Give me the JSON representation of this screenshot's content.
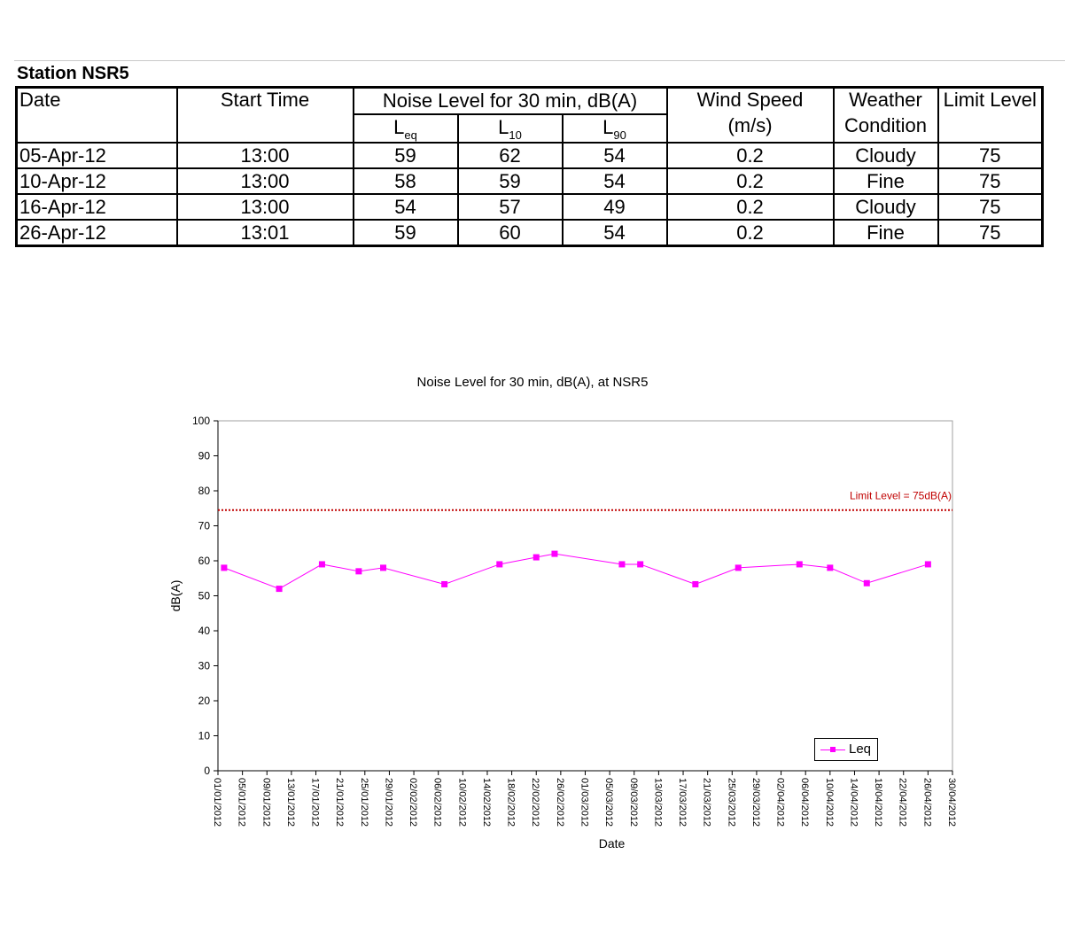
{
  "table": {
    "title": "Station NSR5",
    "headers": {
      "date": "Date",
      "start_time": "Start Time",
      "noise_group": "Noise Level for 30 min, dB(A)",
      "leq": "L",
      "leq_sub": "eq",
      "l10": "L",
      "l10_sub": "10",
      "l90": "L",
      "l90_sub": "90",
      "wind_speed": "Wind Speed",
      "wind_unit": "(m/s)",
      "weather": "Weather",
      "weather2": "Condition",
      "limit": "Limit Level"
    },
    "rows": [
      {
        "date": "05-Apr-12",
        "time": "13:00",
        "leq": "59",
        "l10": "62",
        "l90": "54",
        "wind": "0.2",
        "weather": "Cloudy",
        "limit": "75"
      },
      {
        "date": "10-Apr-12",
        "time": "13:00",
        "leq": "58",
        "l10": "59",
        "l90": "54",
        "wind": "0.2",
        "weather": "Fine",
        "limit": "75"
      },
      {
        "date": "16-Apr-12",
        "time": "13:00",
        "leq": "54",
        "l10": "57",
        "l90": "49",
        "wind": "0.2",
        "weather": "Cloudy",
        "limit": "75"
      },
      {
        "date": "26-Apr-12",
        "time": "13:01",
        "leq": "59",
        "l10": "60",
        "l90": "54",
        "wind": "0.2",
        "weather": "Fine",
        "limit": "75"
      }
    ]
  },
  "colors": {
    "series": "#ff00ff",
    "limit": "#c00000",
    "axis": "#000000",
    "plot_border": "#a0a0a0"
  },
  "chart_data": {
    "type": "line",
    "title": "Noise Level for 30 min, dB(A), at NSR5",
    "xlabel": "Date",
    "ylabel": "dB(A)",
    "ylim": [
      0,
      100
    ],
    "yticks": [
      0,
      10,
      20,
      30,
      40,
      50,
      60,
      70,
      80,
      90,
      100
    ],
    "xlim": [
      "01/01/2012",
      "30/04/2012"
    ],
    "xticks": [
      "01/01/2012",
      "05/01/2012",
      "09/01/2012",
      "13/01/2012",
      "17/01/2012",
      "21/01/2012",
      "25/01/2012",
      "29/01/2012",
      "02/02/2012",
      "06/02/2012",
      "10/02/2012",
      "14/02/2012",
      "18/02/2012",
      "22/02/2012",
      "26/02/2012",
      "01/03/2012",
      "05/03/2012",
      "09/03/2012",
      "13/03/2012",
      "17/03/2012",
      "21/03/2012",
      "25/03/2012",
      "29/03/2012",
      "02/04/2012",
      "06/04/2012",
      "10/04/2012",
      "14/04/2012",
      "18/04/2012",
      "22/04/2012",
      "26/04/2012",
      "30/04/2012"
    ],
    "grid": false,
    "legend_position": "bottom-right",
    "series": [
      {
        "name": "Leq",
        "x": [
          "02/01/2012",
          "11/01/2012",
          "18/01/2012",
          "24/01/2012",
          "28/01/2012",
          "07/02/2012",
          "16/02/2012",
          "22/02/2012",
          "25/02/2012",
          "07/03/2012",
          "10/03/2012",
          "19/03/2012",
          "26/03/2012",
          "05/04/2012",
          "10/04/2012",
          "16/04/2012",
          "26/04/2012"
        ],
        "y": [
          58,
          52,
          59,
          57,
          58,
          53.3,
          59,
          61,
          62,
          59,
          59,
          53.3,
          58,
          59,
          58,
          53.6,
          59
        ]
      }
    ],
    "reference_line": {
      "value": 74.5,
      "label": "Limit Level = 75dB(A)"
    }
  }
}
